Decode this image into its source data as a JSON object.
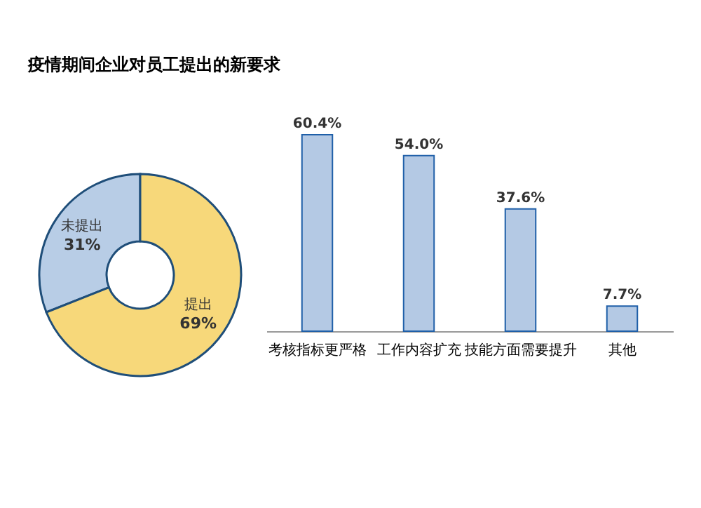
{
  "chart_data": [
    {
      "type": "donut",
      "title": "疫情期间企业对员工提出的新要求",
      "categories": [
        "未提出",
        "提出"
      ],
      "values": [
        31,
        69
      ],
      "value_labels": [
        "31%",
        "69%"
      ],
      "colors": [
        "#b8cde6",
        "#f7d87a"
      ]
    },
    {
      "type": "bar",
      "categories": [
        "考核指标更严格",
        "工作内容扩充",
        "技能方面需要提升",
        "其他"
      ],
      "values": [
        60.4,
        54.0,
        37.6,
        7.7
      ],
      "value_labels": [
        "60.4%",
        "54.0%",
        "37.6%",
        "7.7%"
      ],
      "color": "#b4c9e4"
    }
  ]
}
